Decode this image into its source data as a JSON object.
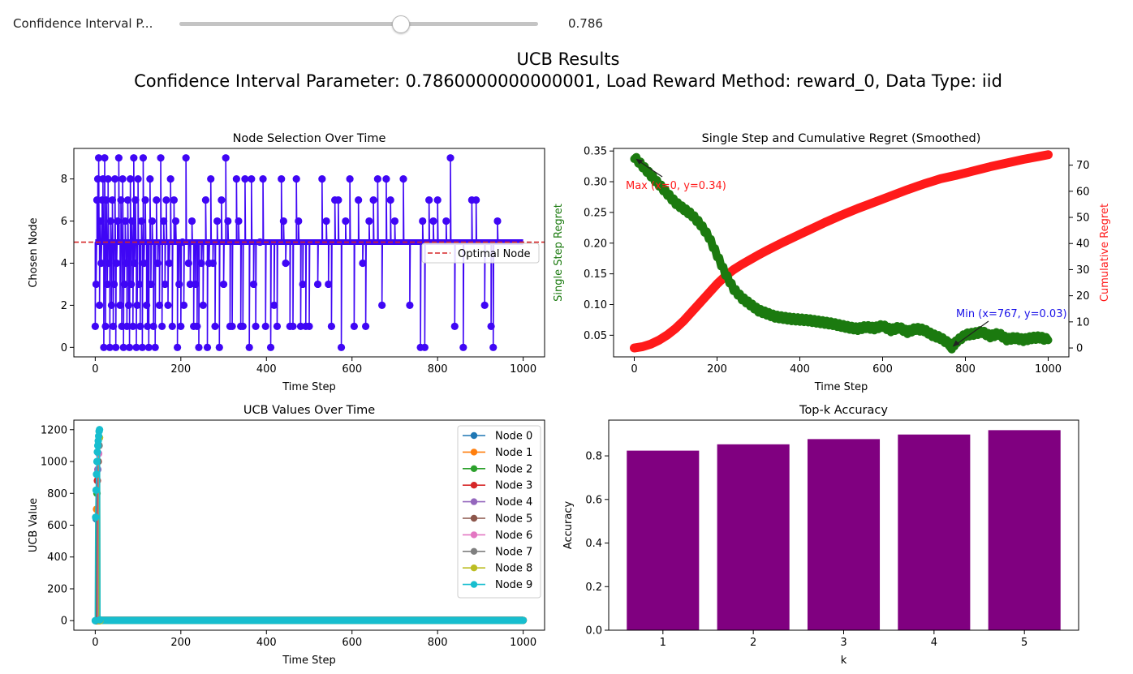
{
  "slider": {
    "label": "Confidence Interval P...",
    "value_text": "0.786",
    "value": 0.786,
    "min": 0,
    "max": 1
  },
  "figure": {
    "title_line1": "UCB Results",
    "title_line2": "Confidence Interval Parameter: 0.7860000000000001, Load Reward Method: reward_0, Data Type: iid"
  },
  "colors": {
    "node_selection": "#3f06f5",
    "optimal": "#d62728",
    "single_regret": "#1b7a0f",
    "cumulative_regret": "#ff1a1a",
    "bar": "#800080",
    "annotation_max": "#ff1a1a",
    "annotation_min": "#1a12e8"
  },
  "chart_data": [
    {
      "type": "scatter",
      "title": "Node Selection Over Time",
      "xlabel": "Time Step",
      "ylabel": "Chosen Node",
      "xlim": [
        -50,
        1050
      ],
      "ylim": [
        -0.45,
        9.45
      ],
      "xticks": [
        0,
        200,
        400,
        600,
        800,
        1000
      ],
      "yticks": [
        0,
        2,
        4,
        6,
        8
      ],
      "optimal_node": 5,
      "legend": [
        "Optimal Node"
      ],
      "legend_position": "center-right",
      "baseline_node": 5,
      "baseline_range": [
        0,
        1000
      ],
      "deviations": [
        [
          0,
          1
        ],
        [
          2,
          3
        ],
        [
          4,
          7
        ],
        [
          6,
          8
        ],
        [
          8,
          9
        ],
        [
          10,
          2
        ],
        [
          12,
          6
        ],
        [
          14,
          4
        ],
        [
          16,
          7
        ],
        [
          18,
          8
        ],
        [
          20,
          0
        ],
        [
          22,
          9
        ],
        [
          24,
          1
        ],
        [
          26,
          7
        ],
        [
          28,
          3
        ],
        [
          30,
          8
        ],
        [
          32,
          4
        ],
        [
          34,
          0
        ],
        [
          36,
          6
        ],
        [
          38,
          2
        ],
        [
          40,
          7
        ],
        [
          42,
          1
        ],
        [
          44,
          3
        ],
        [
          46,
          8
        ],
        [
          48,
          0
        ],
        [
          50,
          4
        ],
        [
          52,
          6
        ],
        [
          55,
          9
        ],
        [
          58,
          2
        ],
        [
          60,
          7
        ],
        [
          62,
          1
        ],
        [
          64,
          8
        ],
        [
          66,
          0
        ],
        [
          68,
          3
        ],
        [
          70,
          6
        ],
        [
          72,
          4
        ],
        [
          74,
          1
        ],
        [
          76,
          7
        ],
        [
          78,
          2
        ],
        [
          80,
          0
        ],
        [
          82,
          8
        ],
        [
          84,
          3
        ],
        [
          86,
          6
        ],
        [
          88,
          1
        ],
        [
          90,
          9
        ],
        [
          92,
          4
        ],
        [
          94,
          7
        ],
        [
          96,
          0
        ],
        [
          98,
          2
        ],
        [
          100,
          8
        ],
        [
          103,
          3
        ],
        [
          105,
          1
        ],
        [
          108,
          6
        ],
        [
          110,
          0
        ],
        [
          112,
          9
        ],
        [
          114,
          4
        ],
        [
          117,
          7
        ],
        [
          120,
          2
        ],
        [
          122,
          1
        ],
        [
          125,
          0
        ],
        [
          128,
          8
        ],
        [
          130,
          3
        ],
        [
          133,
          6
        ],
        [
          136,
          1
        ],
        [
          140,
          0
        ],
        [
          143,
          7
        ],
        [
          146,
          4
        ],
        [
          150,
          2
        ],
        [
          153,
          9
        ],
        [
          156,
          1
        ],
        [
          160,
          6
        ],
        [
          163,
          3
        ],
        [
          166,
          7
        ],
        [
          170,
          2
        ],
        [
          173,
          4
        ],
        [
          176,
          8
        ],
        [
          180,
          1
        ],
        [
          184,
          7
        ],
        [
          188,
          6
        ],
        [
          192,
          0
        ],
        [
          196,
          3
        ],
        [
          200,
          1
        ],
        [
          204,
          5
        ],
        [
          207,
          2
        ],
        [
          212,
          9
        ],
        [
          218,
          4
        ],
        [
          222,
          3
        ],
        [
          226,
          6
        ],
        [
          230,
          1
        ],
        [
          234,
          3
        ],
        [
          238,
          1
        ],
        [
          242,
          0
        ],
        [
          248,
          4
        ],
        [
          252,
          2
        ],
        [
          258,
          7
        ],
        [
          262,
          0
        ],
        [
          266,
          4
        ],
        [
          270,
          8
        ],
        [
          275,
          4
        ],
        [
          280,
          1
        ],
        [
          285,
          6
        ],
        [
          290,
          0
        ],
        [
          295,
          7
        ],
        [
          300,
          3
        ],
        [
          305,
          9
        ],
        [
          310,
          6
        ],
        [
          315,
          1
        ],
        [
          320,
          1
        ],
        [
          330,
          8
        ],
        [
          335,
          6
        ],
        [
          340,
          1
        ],
        [
          345,
          1
        ],
        [
          350,
          8
        ],
        [
          360,
          0
        ],
        [
          365,
          8
        ],
        [
          370,
          3
        ],
        [
          375,
          1
        ],
        [
          385,
          5
        ],
        [
          392,
          8
        ],
        [
          398,
          1
        ],
        [
          410,
          0
        ],
        [
          418,
          2
        ],
        [
          425,
          1
        ],
        [
          435,
          8
        ],
        [
          440,
          6
        ],
        [
          445,
          4
        ],
        [
          455,
          1
        ],
        [
          462,
          1
        ],
        [
          470,
          8
        ],
        [
          475,
          6
        ],
        [
          480,
          1
        ],
        [
          485,
          3
        ],
        [
          492,
          1
        ],
        [
          500,
          1
        ],
        [
          520,
          3
        ],
        [
          530,
          8
        ],
        [
          540,
          6
        ],
        [
          545,
          3
        ],
        [
          552,
          1
        ],
        [
          560,
          7
        ],
        [
          568,
          7
        ],
        [
          575,
          0
        ],
        [
          585,
          6
        ],
        [
          595,
          8
        ],
        [
          605,
          1
        ],
        [
          615,
          7
        ],
        [
          625,
          4
        ],
        [
          632,
          1
        ],
        [
          640,
          6
        ],
        [
          650,
          7
        ],
        [
          660,
          8
        ],
        [
          670,
          2
        ],
        [
          680,
          8
        ],
        [
          690,
          7
        ],
        [
          700,
          6
        ],
        [
          720,
          8
        ],
        [
          735,
          2
        ],
        [
          760,
          0
        ],
        [
          765,
          6
        ],
        [
          770,
          0
        ],
        [
          780,
          7
        ],
        [
          790,
          6
        ],
        [
          800,
          7
        ],
        [
          820,
          6
        ],
        [
          830,
          9
        ],
        [
          840,
          1
        ],
        [
          860,
          0
        ],
        [
          880,
          7
        ],
        [
          890,
          7
        ],
        [
          910,
          2
        ],
        [
          925,
          1
        ],
        [
          930,
          0
        ],
        [
          940,
          6
        ]
      ]
    },
    {
      "type": "line",
      "title": "Single Step and Cumulative Regret (Smoothed)",
      "xlabel": "Time Step",
      "ylabel": "Single Step Regret",
      "ylabel_right": "Cumulative Regret",
      "xlim": [
        -50,
        1050
      ],
      "ylim": [
        0.0148,
        0.3542
      ],
      "ylim_right": [
        -3.4,
        76.4
      ],
      "xticks": [
        0,
        200,
        400,
        600,
        800,
        1000
      ],
      "yticks": [
        0.05,
        0.1,
        0.15,
        0.2,
        0.25,
        0.3,
        0.35
      ],
      "yticks_right": [
        0,
        10,
        20,
        30,
        40,
        50,
        60,
        70
      ],
      "annotations": [
        {
          "text": "Max (x=0, y=0.34)",
          "x": 0,
          "y": 0.34
        },
        {
          "text": "Min (x=767, y=0.03)",
          "x": 767,
          "y": 0.03
        }
      ],
      "series": [
        {
          "axis": "left",
          "x": [
            0,
            20,
            40,
            60,
            80,
            100,
            120,
            140,
            160,
            180,
            200,
            220,
            240,
            260,
            280,
            300,
            320,
            340,
            360,
            380,
            400,
            420,
            440,
            460,
            480,
            500,
            520,
            540,
            560,
            580,
            600,
            620,
            640,
            660,
            680,
            700,
            720,
            740,
            760,
            767,
            780,
            800,
            820,
            840,
            860,
            880,
            900,
            920,
            940,
            960,
            980,
            1000
          ],
          "y": [
            0.34,
            0.325,
            0.31,
            0.295,
            0.28,
            0.265,
            0.255,
            0.245,
            0.23,
            0.21,
            0.18,
            0.15,
            0.125,
            0.11,
            0.1,
            0.09,
            0.085,
            0.08,
            0.078,
            0.076,
            0.075,
            0.074,
            0.072,
            0.07,
            0.068,
            0.065,
            0.062,
            0.06,
            0.063,
            0.061,
            0.065,
            0.058,
            0.062,
            0.055,
            0.06,
            0.058,
            0.05,
            0.045,
            0.036,
            0.03,
            0.04,
            0.05,
            0.052,
            0.055,
            0.048,
            0.052,
            0.043,
            0.045,
            0.042,
            0.045,
            0.046,
            0.042
          ]
        },
        {
          "axis": "right",
          "x": [
            0,
            20,
            40,
            60,
            80,
            100,
            120,
            140,
            160,
            180,
            200,
            220,
            240,
            260,
            280,
            300,
            320,
            340,
            360,
            380,
            400,
            420,
            440,
            460,
            480,
            500,
            520,
            540,
            560,
            580,
            600,
            620,
            640,
            660,
            680,
            700,
            720,
            740,
            760,
            780,
            800,
            820,
            840,
            860,
            880,
            900,
            920,
            940,
            960,
            980,
            1000
          ],
          "y": [
            0,
            0.5,
            1.5,
            3,
            5,
            7.5,
            10.5,
            14,
            17.5,
            21,
            24.5,
            27.5,
            30,
            32,
            33.8,
            35.6,
            37.3,
            38.9,
            40.5,
            42,
            43.5,
            45,
            46.5,
            48,
            49.4,
            50.8,
            52.1,
            53.4,
            54.6,
            55.8,
            57,
            58.2,
            59.4,
            60.6,
            61.7,
            62.8,
            63.8,
            64.8,
            65.5,
            66.2,
            67,
            67.8,
            68.6,
            69.4,
            70.1,
            70.8,
            71.5,
            72.2,
            72.8,
            73.4,
            74
          ]
        }
      ]
    },
    {
      "type": "line",
      "title": "UCB Values Over Time",
      "xlabel": "Time Step",
      "ylabel": "UCB Value",
      "xlim": [
        -50,
        1050
      ],
      "ylim": [
        -60,
        1260
      ],
      "xticks": [
        0,
        200,
        400,
        600,
        800,
        1000
      ],
      "yticks": [
        0,
        200,
        400,
        600,
        800,
        1000,
        1200
      ],
      "legend_position": "top-right",
      "series": [
        {
          "name": "Node 0",
          "color": "#1f77b4",
          "peak": [
            [
              1,
              0
            ],
            [
              2,
              640
            ],
            [
              3,
              0
            ]
          ]
        },
        {
          "name": "Node 1",
          "color": "#ff7f0e",
          "peak": [
            [
              2,
              0
            ],
            [
              3,
              700
            ],
            [
              4,
              0
            ]
          ]
        },
        {
          "name": "Node 2",
          "color": "#2ca02c",
          "peak": [
            [
              3,
              0
            ],
            [
              4,
              800
            ],
            [
              5,
              0
            ]
          ]
        },
        {
          "name": "Node 3",
          "color": "#d62728",
          "peak": [
            [
              4,
              0
            ],
            [
              5,
              880
            ],
            [
              6,
              0
            ]
          ]
        },
        {
          "name": "Node 4",
          "color": "#9467bd",
          "peak": [
            [
              5,
              0
            ],
            [
              6,
              950
            ],
            [
              7,
              0
            ]
          ]
        },
        {
          "name": "Node 5",
          "color": "#8c564b",
          "peak": [
            [
              6,
              0
            ],
            [
              7,
              1000
            ],
            [
              8,
              0
            ]
          ]
        },
        {
          "name": "Node 6",
          "color": "#e377c2",
          "peak": [
            [
              7,
              0
            ],
            [
              8,
              1050
            ],
            [
              9,
              0
            ]
          ]
        },
        {
          "name": "Node 7",
          "color": "#7f7f7f",
          "peak": [
            [
              8,
              0
            ],
            [
              9,
              1100
            ],
            [
              10,
              0
            ]
          ]
        },
        {
          "name": "Node 8",
          "color": "#bcbd22",
          "peak": [
            [
              9,
              0
            ],
            [
              10,
              1150
            ],
            [
              11,
              0
            ]
          ]
        },
        {
          "name": "Node 9",
          "color": "#17becf",
          "peak": [
            [
              0,
              0
            ],
            [
              1,
              650
            ],
            [
              2,
              820
            ],
            [
              3,
              920
            ],
            [
              4,
              1000
            ],
            [
              5,
              1060
            ],
            [
              6,
              1100
            ],
            [
              7,
              1130
            ],
            [
              8,
              1160
            ],
            [
              9,
              1190
            ],
            [
              10,
              1200
            ],
            [
              11,
              5
            ]
          ]
        }
      ]
    },
    {
      "type": "bar",
      "title": "Top-k Accuracy",
      "xlabel": "k",
      "ylabel": "Accuracy",
      "categories": [
        "1",
        "2",
        "3",
        "4",
        "5"
      ],
      "values": [
        0.824,
        0.853,
        0.877,
        0.898,
        0.918
      ],
      "ylim": [
        0,
        0.964
      ],
      "yticks": [
        "0.0",
        "0.2",
        "0.4",
        "0.6",
        "0.8"
      ]
    }
  ]
}
